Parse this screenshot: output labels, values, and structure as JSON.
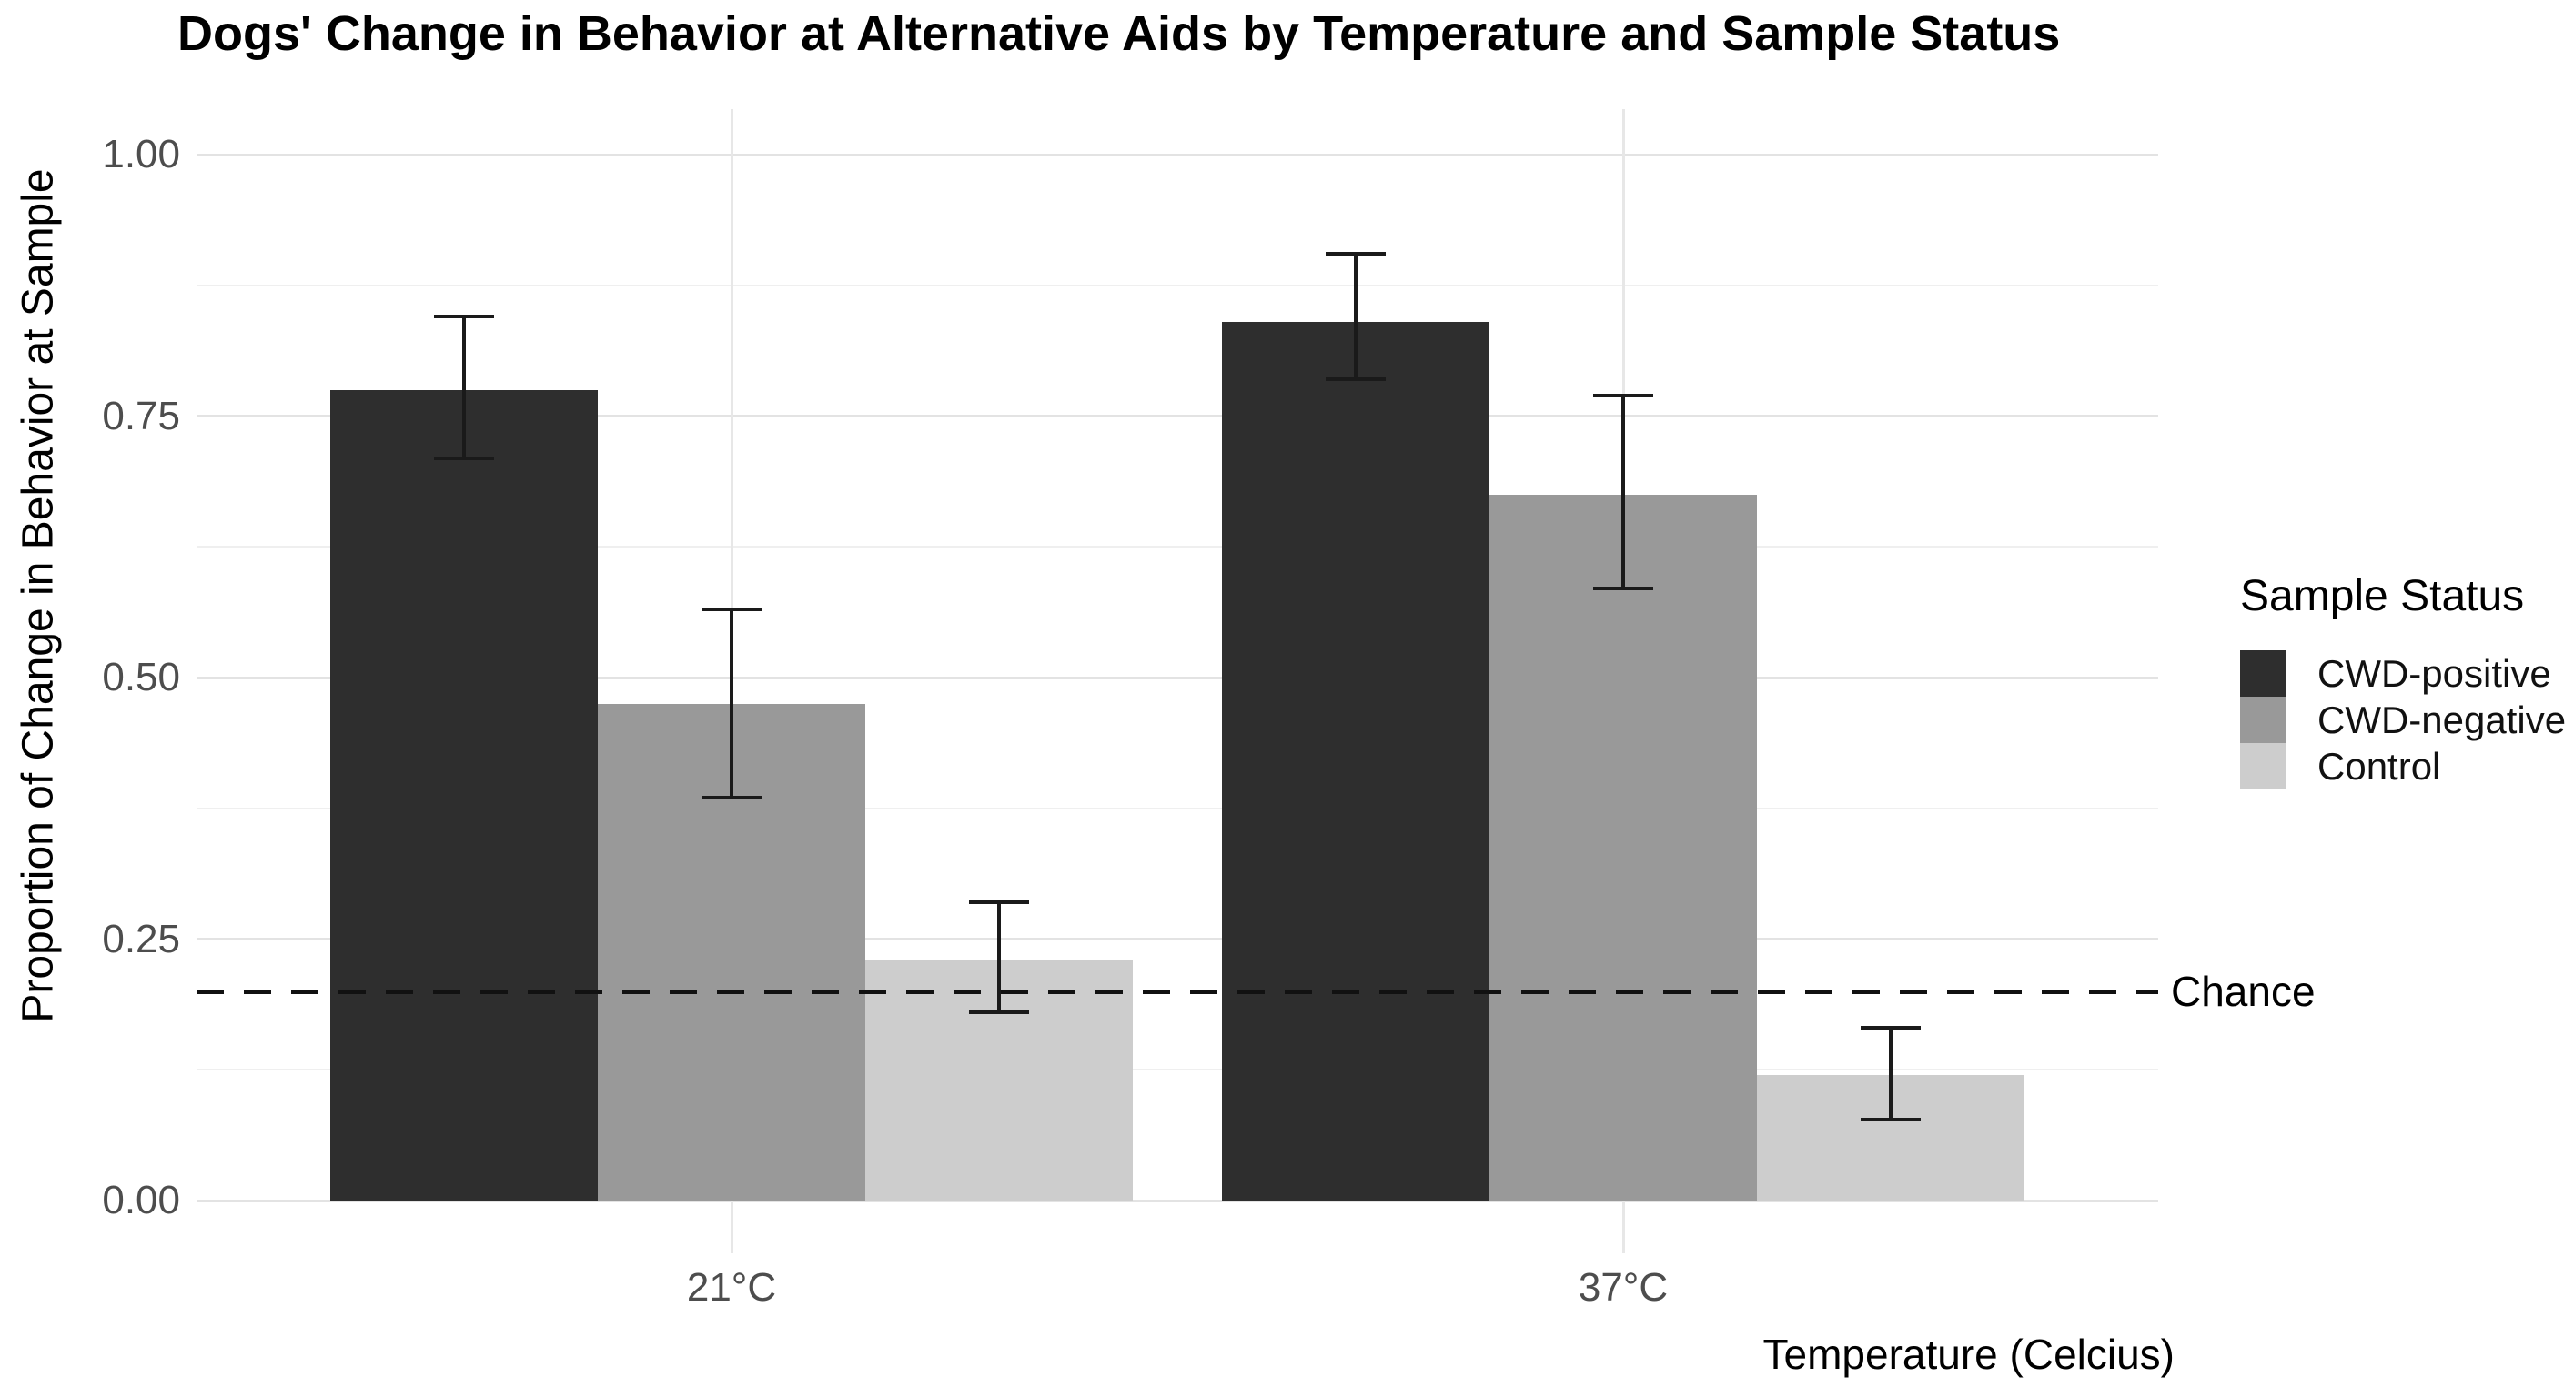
{
  "chart_data": {
    "type": "bar",
    "title": "Dogs' Change in Behavior at Alternative Aids by Temperature and Sample Status",
    "xlabel": "Temperature (Celcius)",
    "ylabel": "Proportion of Change in Behavior at Sample",
    "categories": [
      "21°C",
      "37°C"
    ],
    "series": [
      {
        "name": "CWD-positive",
        "color": "#2e2e2e",
        "values": [
          0.775,
          0.84
        ],
        "error_low": [
          0.71,
          0.785
        ],
        "error_high": [
          0.845,
          0.905
        ]
      },
      {
        "name": "CWD-negative",
        "color": "#999999",
        "values": [
          0.475,
          0.675
        ],
        "error_low": [
          0.385,
          0.585
        ],
        "error_high": [
          0.565,
          0.77
        ]
      },
      {
        "name": "Control",
        "color": "#cdcdcd",
        "values": [
          0.23,
          0.12
        ],
        "error_low": [
          0.18,
          0.077
        ],
        "error_high": [
          0.285,
          0.165
        ]
      }
    ],
    "reference_line": {
      "label": "Chance",
      "value": 0.2,
      "style": "dashed",
      "color": "#111111"
    },
    "y_ticks": [
      0,
      0.25,
      0.5,
      0.75,
      1.0
    ],
    "y_tick_labels": [
      "0.00",
      "0.25",
      "0.50",
      "0.75",
      "1.00"
    ],
    "y_minor": [
      0.125,
      0.375,
      0.625,
      0.875
    ],
    "ylim": [
      0,
      1.0
    ],
    "legend_title": "Sample Status",
    "legend_position": "right",
    "grid": true
  },
  "colors": {
    "background": "#ffffff",
    "axis_text": "#4d4d4d",
    "title_text": "#000000",
    "grid_major": "#e3e3e3",
    "grid_minor": "#efefef",
    "error_bar": "#1a1a1a"
  }
}
